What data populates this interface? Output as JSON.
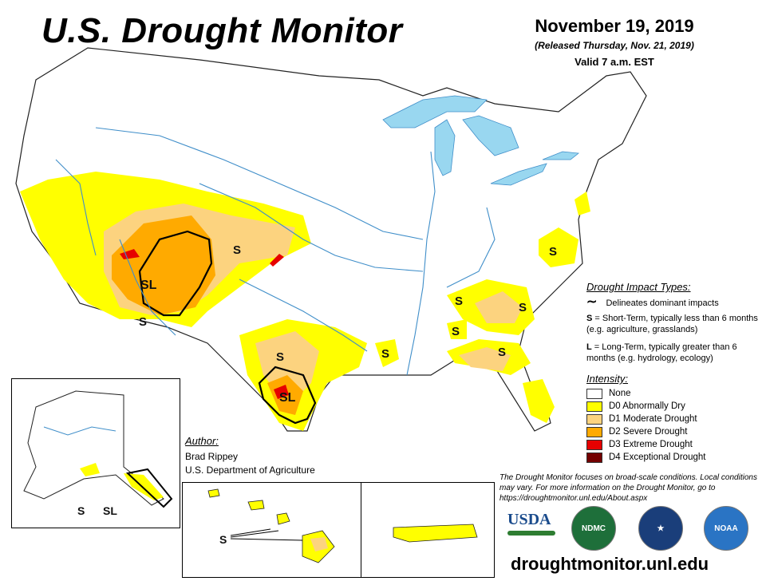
{
  "header": {
    "title": "U.S. Drought Monitor",
    "date": "November 19, 2019",
    "released": "(Released Thursday, Nov. 21, 2019)",
    "valid": "Valid 7 a.m. EST"
  },
  "colors": {
    "none": "#ffffff",
    "d0": "#ffff00",
    "d1": "#fcd37f",
    "d2": "#ffaa00",
    "d3": "#e60000",
    "d4": "#730000",
    "water": "#99d7f0",
    "river": "#3f8ec9"
  },
  "impact_legend": {
    "title": "Drought Impact Types:",
    "delineates": "Delineates dominant impacts",
    "short_term_code": "S",
    "short_term": "= Short-Term, typically less than 6 months (e.g. agriculture, grasslands)",
    "long_term_code": "L",
    "long_term": "= Long-Term, typically greater than 6 months (e.g. hydrology, ecology)"
  },
  "intensity_legend": {
    "title": "Intensity:",
    "items": [
      {
        "label": "None",
        "color": "#ffffff"
      },
      {
        "label": "D0 Abnormally Dry",
        "color": "#ffff00"
      },
      {
        "label": "D1 Moderate Drought",
        "color": "#fcd37f"
      },
      {
        "label": "D2 Severe Drought",
        "color": "#ffaa00"
      },
      {
        "label": "D3 Extreme Drought",
        "color": "#e60000"
      },
      {
        "label": "D4 Exceptional Drought",
        "color": "#730000"
      }
    ]
  },
  "author": {
    "title": "Author:",
    "name": "Brad Rippey",
    "org": "U.S. Department of Agriculture"
  },
  "note": "The Drought Monitor focuses on broad-scale conditions. Local conditions may vary. For more information on the Drought Monitor, go to https://droughtmonitor.unl.edu/About.aspx",
  "website": "droughtmonitor.unl.edu",
  "map_labels": {
    "sl": "SL",
    "s": "S"
  },
  "logos": {
    "usda": "USDA",
    "ndmc": "NDMC",
    "noaa": "NOAA"
  }
}
